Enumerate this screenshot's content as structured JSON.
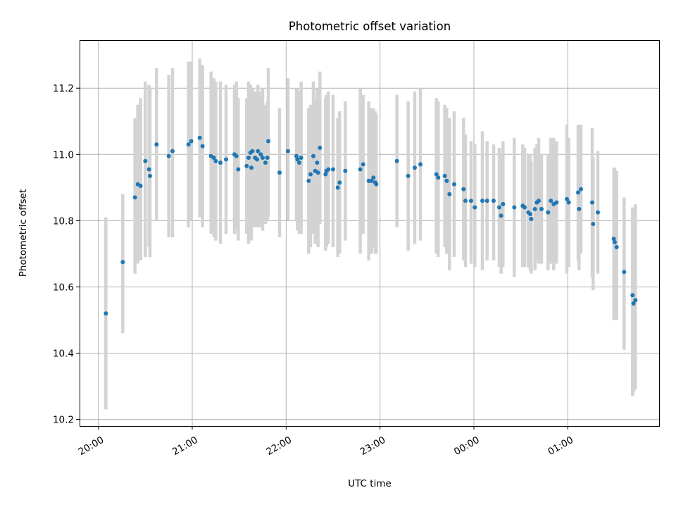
{
  "chart_data": {
    "type": "scatter",
    "title": "Photometric offset variation",
    "xlabel": "UTC time",
    "ylabel": "Photometric offset",
    "x_unit": "hours after 20:00 UTC",
    "xlim": [
      -0.2,
      5.98
    ],
    "ylim": [
      10.18,
      11.345
    ],
    "xtick_labels": [
      "20:00",
      "21:00",
      "22:00",
      "23:00",
      "00:00",
      "01:00"
    ],
    "ytick_labels": [
      "10.2",
      "10.4",
      "10.6",
      "10.8",
      "11.0",
      "11.2"
    ],
    "grid": true,
    "colors": {
      "marker": "#1f77b4",
      "errorbar": "#d3d3d3",
      "grid": "#b0b0b0"
    },
    "points": [
      [
        0.08,
        10.52,
        10.23,
        10.81
      ],
      [
        0.26,
        10.675,
        10.46,
        10.88
      ],
      [
        0.39,
        10.87,
        10.64,
        11.11
      ],
      [
        0.42,
        10.91,
        10.67,
        11.15
      ],
      [
        0.45,
        10.905,
        10.68,
        11.17
      ],
      [
        0.5,
        10.98,
        10.69,
        11.22
      ],
      [
        0.54,
        10.955,
        10.72,
        11.21
      ],
      [
        0.55,
        10.935,
        10.69,
        11.2
      ],
      [
        0.62,
        11.03,
        10.8,
        11.26
      ],
      [
        0.75,
        10.995,
        10.75,
        11.24
      ],
      [
        0.79,
        11.01,
        10.75,
        11.26
      ],
      [
        0.96,
        11.03,
        10.78,
        11.28
      ],
      [
        0.99,
        11.04,
        10.8,
        11.28
      ],
      [
        1.08,
        11.05,
        10.81,
        11.29
      ],
      [
        1.11,
        11.025,
        10.78,
        11.27
      ],
      [
        1.2,
        10.995,
        10.76,
        11.25
      ],
      [
        1.23,
        10.99,
        10.75,
        11.23
      ],
      [
        1.25,
        10.98,
        10.74,
        11.22
      ],
      [
        1.3,
        10.975,
        10.73,
        11.22
      ],
      [
        1.36,
        10.985,
        10.76,
        11.21
      ],
      [
        1.45,
        11.0,
        10.76,
        11.21
      ],
      [
        1.47,
        10.995,
        10.77,
        11.22
      ],
      [
        1.49,
        10.955,
        10.74,
        11.17
      ],
      [
        1.58,
        10.965,
        10.76,
        11.17
      ],
      [
        1.6,
        10.99,
        10.73,
        11.22
      ],
      [
        1.62,
        11.005,
        10.79,
        11.21
      ],
      [
        1.63,
        10.96,
        10.74,
        11.19
      ],
      [
        1.64,
        11.01,
        10.78,
        11.2
      ],
      [
        1.67,
        10.99,
        10.78,
        11.19
      ],
      [
        1.69,
        10.985,
        10.79,
        11.18
      ],
      [
        1.7,
        11.01,
        10.78,
        11.21
      ],
      [
        1.73,
        11.0,
        10.78,
        11.19
      ],
      [
        1.75,
        10.99,
        10.77,
        11.2
      ],
      [
        1.78,
        10.975,
        10.79,
        11.15
      ],
      [
        1.8,
        10.99,
        10.8,
        11.16
      ],
      [
        1.81,
        11.04,
        10.81,
        11.26
      ],
      [
        1.93,
        10.945,
        10.75,
        11.14
      ],
      [
        2.02,
        11.01,
        10.8,
        11.23
      ],
      [
        2.11,
        10.995,
        10.8,
        11.2
      ],
      [
        2.12,
        10.985,
        10.77,
        11.2
      ],
      [
        2.14,
        10.975,
        10.76,
        11.19
      ],
      [
        2.16,
        10.99,
        10.76,
        11.22
      ],
      [
        2.24,
        10.92,
        10.7,
        11.14
      ],
      [
        2.26,
        10.94,
        10.72,
        11.15
      ],
      [
        2.29,
        10.995,
        10.76,
        11.22
      ],
      [
        2.31,
        10.95,
        10.73,
        11.17
      ],
      [
        2.33,
        10.975,
        10.75,
        11.2
      ],
      [
        2.34,
        10.945,
        10.72,
        11.17
      ],
      [
        2.36,
        11.02,
        10.79,
        11.25
      ],
      [
        2.42,
        10.94,
        10.71,
        11.17
      ],
      [
        2.43,
        10.95,
        10.72,
        11.18
      ],
      [
        2.45,
        10.955,
        10.73,
        11.19
      ],
      [
        2.5,
        10.955,
        10.72,
        11.18
      ],
      [
        2.55,
        10.9,
        10.69,
        11.11
      ],
      [
        2.57,
        10.915,
        10.7,
        11.13
      ],
      [
        2.63,
        10.95,
        10.74,
        11.16
      ],
      [
        2.79,
        10.955,
        10.7,
        11.2
      ],
      [
        2.82,
        10.97,
        10.76,
        11.18
      ],
      [
        2.88,
        10.92,
        10.68,
        11.16
      ],
      [
        2.91,
        10.92,
        10.7,
        11.14
      ],
      [
        2.93,
        10.93,
        10.72,
        11.14
      ],
      [
        2.95,
        10.915,
        10.7,
        11.13
      ],
      [
        2.96,
        10.91,
        10.7,
        11.12
      ],
      [
        3.18,
        10.98,
        10.78,
        11.18
      ],
      [
        3.3,
        10.935,
        10.71,
        11.16
      ],
      [
        3.37,
        10.96,
        10.73,
        11.19
      ],
      [
        3.43,
        10.97,
        10.74,
        11.2
      ],
      [
        3.6,
        10.94,
        10.7,
        11.17
      ],
      [
        3.62,
        10.93,
        10.69,
        11.16
      ],
      [
        3.69,
        10.935,
        10.72,
        11.15
      ],
      [
        3.71,
        10.92,
        10.7,
        11.14
      ],
      [
        3.74,
        10.88,
        10.65,
        11.11
      ],
      [
        3.79,
        10.91,
        10.69,
        11.13
      ],
      [
        3.89,
        10.895,
        10.68,
        11.11
      ],
      [
        3.91,
        10.86,
        10.66,
        11.06
      ],
      [
        3.97,
        10.86,
        10.67,
        11.04
      ],
      [
        4.01,
        10.84,
        10.66,
        11.03
      ],
      [
        4.09,
        10.86,
        10.65,
        11.07
      ],
      [
        4.14,
        10.86,
        10.68,
        11.04
      ],
      [
        4.21,
        10.86,
        10.68,
        11.03
      ],
      [
        4.27,
        10.84,
        10.66,
        11.02
      ],
      [
        4.29,
        10.815,
        10.64,
        11.0
      ],
      [
        4.31,
        10.85,
        10.66,
        11.04
      ],
      [
        4.43,
        10.84,
        10.63,
        11.05
      ],
      [
        4.52,
        10.845,
        10.66,
        11.03
      ],
      [
        4.54,
        10.84,
        10.66,
        11.02
      ],
      [
        4.58,
        10.825,
        10.66,
        11.0
      ],
      [
        4.6,
        10.82,
        10.65,
        11.0
      ],
      [
        4.61,
        10.805,
        10.64,
        10.98
      ],
      [
        4.65,
        10.835,
        10.65,
        11.02
      ],
      [
        4.67,
        10.855,
        10.68,
        11.03
      ],
      [
        4.69,
        10.86,
        10.67,
        11.05
      ],
      [
        4.72,
        10.835,
        10.67,
        11.0
      ],
      [
        4.79,
        10.825,
        10.65,
        11.0
      ],
      [
        4.82,
        10.86,
        10.67,
        11.05
      ],
      [
        4.85,
        10.85,
        10.65,
        11.05
      ],
      [
        4.88,
        10.855,
        10.67,
        11.04
      ],
      [
        4.99,
        10.865,
        10.64,
        11.09
      ],
      [
        5.01,
        10.855,
        10.66,
        11.05
      ],
      [
        5.11,
        10.885,
        10.68,
        11.09
      ],
      [
        5.12,
        10.835,
        10.65,
        11.02
      ],
      [
        5.14,
        10.895,
        10.7,
        11.09
      ],
      [
        5.26,
        10.855,
        10.63,
        11.08
      ],
      [
        5.27,
        10.79,
        10.59,
        10.99
      ],
      [
        5.32,
        10.825,
        10.64,
        11.01
      ],
      [
        5.49,
        10.745,
        10.5,
        10.96
      ],
      [
        5.5,
        10.735,
        10.52,
        10.96
      ],
      [
        5.52,
        10.72,
        10.5,
        10.95
      ],
      [
        5.6,
        10.645,
        10.41,
        10.87
      ],
      [
        5.69,
        10.575,
        10.27,
        10.84
      ],
      [
        5.7,
        10.55,
        10.28,
        10.83
      ],
      [
        5.72,
        10.56,
        10.29,
        10.85
      ]
    ]
  }
}
